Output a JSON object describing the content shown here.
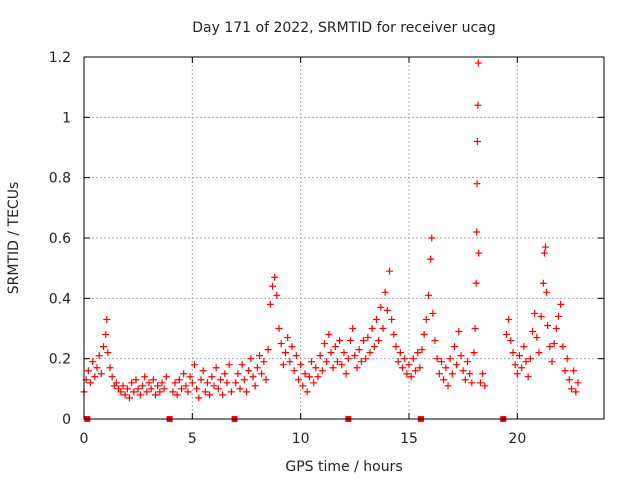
{
  "chart_data": {
    "type": "scatter",
    "title": "Day 171 of 2022, SRMTID for receiver ucag",
    "xlabel": "GPS time / hours",
    "ylabel": "SRMTID / TECUs",
    "xlim": [
      0,
      24
    ],
    "ylim": [
      0,
      1.2
    ],
    "xticks": [
      0,
      5,
      10,
      15,
      20
    ],
    "xtick_labels": [
      "0",
      "5",
      "10",
      "15",
      "20"
    ],
    "yticks": [
      0,
      0.2,
      0.4,
      0.6,
      0.8,
      1.0,
      1.2
    ],
    "ytick_labels": [
      "0",
      "0.2",
      "0.4",
      "0.6",
      "0.8",
      "1",
      "1.2"
    ],
    "grid": true,
    "marker": "+",
    "series": [
      {
        "name": "SRMTID",
        "color": "#ff0000",
        "points": [
          [
            0.0,
            0.09
          ],
          [
            0.1,
            0.13
          ],
          [
            0.2,
            0.16
          ],
          [
            0.3,
            0.12
          ],
          [
            0.4,
            0.19
          ],
          [
            0.5,
            0.14
          ],
          [
            0.6,
            0.17
          ],
          [
            0.7,
            0.21
          ],
          [
            0.8,
            0.15
          ],
          [
            0.9,
            0.24
          ],
          [
            1.0,
            0.28
          ],
          [
            1.05,
            0.33
          ],
          [
            1.1,
            0.22
          ],
          [
            1.2,
            0.17
          ],
          [
            1.3,
            0.14
          ],
          [
            1.4,
            0.11
          ],
          [
            1.5,
            0.12
          ],
          [
            1.6,
            0.1
          ],
          [
            1.7,
            0.09
          ],
          [
            1.8,
            0.11
          ],
          [
            1.9,
            0.08
          ],
          [
            2.0,
            0.1
          ],
          [
            2.1,
            0.07
          ],
          [
            2.2,
            0.12
          ],
          [
            2.3,
            0.09
          ],
          [
            2.4,
            0.13
          ],
          [
            2.5,
            0.1
          ],
          [
            2.6,
            0.08
          ],
          [
            2.7,
            0.11
          ],
          [
            2.8,
            0.14
          ],
          [
            2.9,
            0.09
          ],
          [
            3.0,
            0.12
          ],
          [
            3.1,
            0.1
          ],
          [
            3.2,
            0.13
          ],
          [
            3.3,
            0.08
          ],
          [
            3.4,
            0.11
          ],
          [
            3.5,
            0.09
          ],
          [
            3.6,
            0.12
          ],
          [
            3.7,
            0.1
          ],
          [
            3.8,
            0.14
          ],
          [
            4.1,
            0.09
          ],
          [
            4.2,
            0.12
          ],
          [
            4.3,
            0.08
          ],
          [
            4.4,
            0.13
          ],
          [
            4.5,
            0.1
          ],
          [
            4.6,
            0.15
          ],
          [
            4.7,
            0.11
          ],
          [
            4.8,
            0.09
          ],
          [
            4.9,
            0.14
          ],
          [
            5.0,
            0.12
          ],
          [
            5.1,
            0.18
          ],
          [
            5.2,
            0.1
          ],
          [
            5.3,
            0.07
          ],
          [
            5.4,
            0.13
          ],
          [
            5.5,
            0.16
          ],
          [
            5.6,
            0.09
          ],
          [
            5.7,
            0.12
          ],
          [
            5.8,
            0.08
          ],
          [
            5.9,
            0.14
          ],
          [
            6.0,
            0.11
          ],
          [
            6.1,
            0.17
          ],
          [
            6.2,
            0.1
          ],
          [
            6.3,
            0.13
          ],
          [
            6.4,
            0.08
          ],
          [
            6.5,
            0.15
          ],
          [
            6.6,
            0.12
          ],
          [
            6.7,
            0.18
          ],
          [
            6.8,
            0.09
          ],
          [
            7.0,
            0.12
          ],
          [
            7.1,
            0.15
          ],
          [
            7.2,
            0.1
          ],
          [
            7.3,
            0.18
          ],
          [
            7.4,
            0.13
          ],
          [
            7.5,
            0.09
          ],
          [
            7.6,
            0.16
          ],
          [
            7.7,
            0.2
          ],
          [
            7.8,
            0.14
          ],
          [
            7.9,
            0.11
          ],
          [
            8.0,
            0.17
          ],
          [
            8.1,
            0.21
          ],
          [
            8.2,
            0.15
          ],
          [
            8.3,
            0.19
          ],
          [
            8.4,
            0.13
          ],
          [
            8.5,
            0.23
          ],
          [
            8.6,
            0.38
          ],
          [
            8.7,
            0.44
          ],
          [
            8.8,
            0.47
          ],
          [
            8.9,
            0.41
          ],
          [
            9.0,
            0.3
          ],
          [
            9.1,
            0.25
          ],
          [
            9.2,
            0.18
          ],
          [
            9.3,
            0.22
          ],
          [
            9.4,
            0.27
          ],
          [
            9.5,
            0.19
          ],
          [
            9.6,
            0.24
          ],
          [
            9.7,
            0.16
          ],
          [
            9.8,
            0.21
          ],
          [
            9.9,
            0.13
          ],
          [
            10.0,
            0.18
          ],
          [
            10.1,
            0.11
          ],
          [
            10.2,
            0.15
          ],
          [
            10.3,
            0.09
          ],
          [
            10.4,
            0.14
          ],
          [
            10.5,
            0.19
          ],
          [
            10.6,
            0.12
          ],
          [
            10.7,
            0.17
          ],
          [
            10.8,
            0.14
          ],
          [
            10.9,
            0.21
          ],
          [
            11.0,
            0.16
          ],
          [
            11.1,
            0.25
          ],
          [
            11.2,
            0.19
          ],
          [
            11.3,
            0.28
          ],
          [
            11.4,
            0.22
          ],
          [
            11.5,
            0.17
          ],
          [
            11.6,
            0.24
          ],
          [
            11.7,
            0.19
          ],
          [
            11.8,
            0.26
          ],
          [
            11.9,
            0.18
          ],
          [
            12.0,
            0.22
          ],
          [
            12.1,
            0.15
          ],
          [
            12.2,
            0.2
          ],
          [
            12.3,
            0.26
          ],
          [
            12.4,
            0.3
          ],
          [
            12.5,
            0.21
          ],
          [
            12.6,
            0.17
          ],
          [
            12.7,
            0.23
          ],
          [
            12.8,
            0.19
          ],
          [
            12.9,
            0.26
          ],
          [
            13.0,
            0.2
          ],
          [
            13.1,
            0.27
          ],
          [
            13.2,
            0.22
          ],
          [
            13.3,
            0.3
          ],
          [
            13.4,
            0.24
          ],
          [
            13.5,
            0.33
          ],
          [
            13.6,
            0.26
          ],
          [
            13.7,
            0.37
          ],
          [
            13.8,
            0.3
          ],
          [
            13.9,
            0.42
          ],
          [
            14.0,
            0.36
          ],
          [
            14.1,
            0.49
          ],
          [
            14.2,
            0.33
          ],
          [
            14.3,
            0.28
          ],
          [
            14.4,
            0.24
          ],
          [
            14.5,
            0.19
          ],
          [
            14.6,
            0.22
          ],
          [
            14.7,
            0.17
          ],
          [
            14.8,
            0.2
          ],
          [
            14.9,
            0.15
          ],
          [
            15.0,
            0.18
          ],
          [
            15.1,
            0.14
          ],
          [
            15.2,
            0.2
          ],
          [
            15.3,
            0.16
          ],
          [
            15.4,
            0.22
          ],
          [
            15.5,
            0.17
          ],
          [
            15.6,
            0.23
          ],
          [
            15.7,
            0.28
          ],
          [
            15.8,
            0.33
          ],
          [
            15.9,
            0.41
          ],
          [
            16.0,
            0.53
          ],
          [
            16.05,
            0.6
          ],
          [
            16.1,
            0.35
          ],
          [
            16.2,
            0.26
          ],
          [
            16.3,
            0.2
          ],
          [
            16.4,
            0.15
          ],
          [
            16.5,
            0.19
          ],
          [
            16.6,
            0.13
          ],
          [
            16.7,
            0.17
          ],
          [
            16.8,
            0.11
          ],
          [
            16.9,
            0.2
          ],
          [
            17.0,
            0.15
          ],
          [
            17.1,
            0.24
          ],
          [
            17.2,
            0.18
          ],
          [
            17.3,
            0.29
          ],
          [
            17.4,
            0.21
          ],
          [
            17.5,
            0.16
          ],
          [
            17.6,
            0.13
          ],
          [
            17.7,
            0.19
          ],
          [
            17.8,
            0.15
          ],
          [
            17.9,
            0.12
          ],
          [
            18.0,
            0.22
          ],
          [
            18.05,
            0.3
          ],
          [
            18.1,
            0.45
          ],
          [
            18.12,
            0.62
          ],
          [
            18.14,
            0.78
          ],
          [
            18.16,
            0.92
          ],
          [
            18.18,
            1.04
          ],
          [
            18.2,
            1.18
          ],
          [
            18.22,
            0.55
          ],
          [
            18.3,
            0.12
          ],
          [
            18.4,
            0.15
          ],
          [
            18.5,
            0.11
          ],
          [
            19.5,
            0.28
          ],
          [
            19.6,
            0.33
          ],
          [
            19.7,
            0.26
          ],
          [
            19.8,
            0.22
          ],
          [
            19.9,
            0.18
          ],
          [
            20.0,
            0.15
          ],
          [
            20.1,
            0.21
          ],
          [
            20.2,
            0.17
          ],
          [
            20.3,
            0.24
          ],
          [
            20.4,
            0.19
          ],
          [
            20.5,
            0.14
          ],
          [
            20.6,
            0.2
          ],
          [
            20.7,
            0.29
          ],
          [
            20.8,
            0.35
          ],
          [
            20.9,
            0.27
          ],
          [
            21.0,
            0.22
          ],
          [
            21.1,
            0.34
          ],
          [
            21.2,
            0.45
          ],
          [
            21.25,
            0.55
          ],
          [
            21.3,
            0.57
          ],
          [
            21.35,
            0.42
          ],
          [
            21.4,
            0.31
          ],
          [
            21.5,
            0.24
          ],
          [
            21.6,
            0.19
          ],
          [
            21.7,
            0.25
          ],
          [
            21.8,
            0.3
          ],
          [
            21.9,
            0.34
          ],
          [
            22.0,
            0.38
          ],
          [
            22.1,
            0.24
          ],
          [
            22.2,
            0.16
          ],
          [
            22.3,
            0.2
          ],
          [
            22.4,
            0.13
          ],
          [
            22.5,
            0.1
          ],
          [
            22.6,
            0.16
          ],
          [
            22.7,
            0.09
          ],
          [
            22.8,
            0.12
          ]
        ]
      }
    ],
    "markers_on_axis": [
      0.15,
      3.95,
      6.95,
      12.2,
      15.55,
      19.35
    ]
  }
}
